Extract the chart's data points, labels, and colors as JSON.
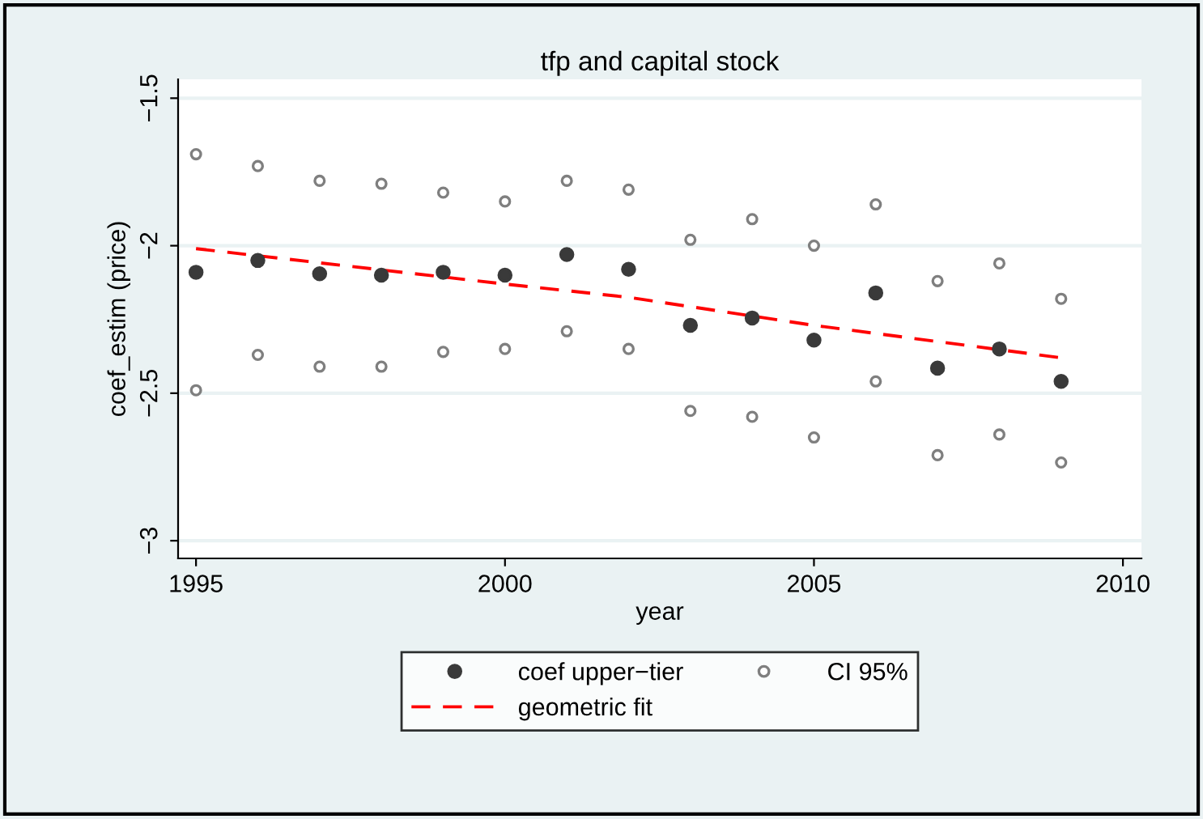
{
  "chart_data": {
    "type": "scatter",
    "title": "tfp and capital stock",
    "xlabel": "year",
    "ylabel": "coef_estim (price)",
    "xlim": [
      1994.71,
      2010.3
    ],
    "xticks": [
      1995,
      2000,
      2005,
      2010
    ],
    "ylim": [
      -3.06,
      -1.436
    ],
    "yticks": [
      -3,
      -2.5,
      -2,
      -1.5
    ],
    "grid": "y",
    "legend": "bottom",
    "marker": "circle",
    "series": [
      {
        "name": "coef upper−tier",
        "color": "#3a3a3a",
        "x": [
          1995,
          1996,
          1997,
          1998,
          1999,
          2000,
          2001,
          2002,
          2003,
          2004,
          2005,
          2006,
          2007,
          2008,
          2009
        ],
        "values": [
          -2.09,
          -2.05,
          -2.095,
          -2.1,
          -2.09,
          -2.1,
          -2.03,
          -2.08,
          -2.27,
          -2.245,
          -2.32,
          -2.16,
          -2.415,
          -2.35,
          -2.46
        ]
      },
      {
        "name": "CI 95%",
        "color": "#7f7f7f",
        "x": [
          1995,
          1996,
          1997,
          1998,
          1999,
          2000,
          2001,
          2002,
          2003,
          2004,
          2005,
          2006,
          2007,
          2008,
          2009,
          1995,
          1996,
          1997,
          1998,
          1999,
          2000,
          2001,
          2002,
          2003,
          2004,
          2005,
          2006,
          2007,
          2008,
          2009
        ],
        "values": [
          -1.69,
          -1.73,
          -1.78,
          -1.79,
          -1.82,
          -1.85,
          -1.78,
          -1.81,
          -1.98,
          -1.91,
          -2.0,
          -1.86,
          -2.12,
          -2.06,
          -2.18,
          -2.49,
          -2.37,
          -2.41,
          -2.41,
          -2.36,
          -2.35,
          -2.29,
          -2.35,
          -2.56,
          -2.58,
          -2.65,
          -2.46,
          -2.71,
          -2.64,
          -2.735
        ]
      },
      {
        "name": "geometric fit",
        "color": "#ff0000",
        "type": "line",
        "marker": "none",
        "line_style": "dashed",
        "x": [
          1995,
          2000,
          2002,
          2005,
          2009
        ],
        "values": [
          -2.01,
          -2.13,
          -2.175,
          -2.27,
          -2.38
        ]
      }
    ]
  }
}
